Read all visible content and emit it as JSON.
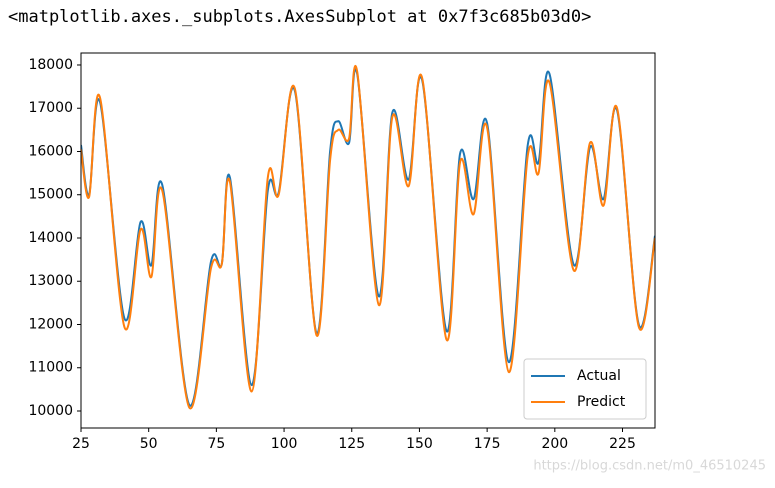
{
  "output_text": "<matplotlib.axes._subplots.AxesSubplot at 0x7f3c685b03d0>",
  "watermark": "https://blog.csdn.net/m0_46510245",
  "chart_data": {
    "type": "line",
    "x": [
      25,
      28,
      32,
      41,
      47,
      51,
      55,
      65,
      73,
      77,
      80,
      88,
      94,
      98,
      104,
      112,
      117,
      120,
      124,
      127,
      135,
      140,
      146,
      151,
      160,
      165,
      170,
      175,
      183,
      190,
      194,
      198,
      207,
      213,
      218,
      223,
      231,
      237
    ],
    "series": [
      {
        "name": "Actual",
        "color": "#1f77b4",
        "values": [
          16150,
          15000,
          17150,
          12150,
          14370,
          13370,
          15230,
          10140,
          13450,
          13400,
          15400,
          10600,
          15100,
          15050,
          17400,
          11800,
          16000,
          16700,
          16200,
          17800,
          12650,
          16900,
          15350,
          17650,
          11850,
          15950,
          14900,
          16650,
          11130,
          16150,
          15750,
          17800,
          13380,
          16100,
          14900,
          16950,
          12000,
          14050
        ]
      },
      {
        "name": "Predict",
        "color": "#ff7f0e",
        "values": [
          16050,
          14950,
          17250,
          11950,
          14200,
          13100,
          15100,
          10080,
          13300,
          13400,
          15300,
          10450,
          15400,
          15000,
          17450,
          11750,
          15800,
          16500,
          16300,
          17850,
          12450,
          16800,
          15200,
          17700,
          11650,
          15750,
          14550,
          16550,
          10900,
          15900,
          15500,
          17600,
          13250,
          16200,
          14750,
          17000,
          11950,
          14000
        ]
      }
    ],
    "xlim": [
      25,
      237
    ],
    "ylim": [
      9607,
      18277
    ],
    "xticks": [
      25,
      50,
      75,
      100,
      125,
      150,
      175,
      200,
      225
    ],
    "yticks": [
      10000,
      11000,
      12000,
      13000,
      14000,
      15000,
      16000,
      17000,
      18000
    ],
    "legend": "lower right"
  }
}
